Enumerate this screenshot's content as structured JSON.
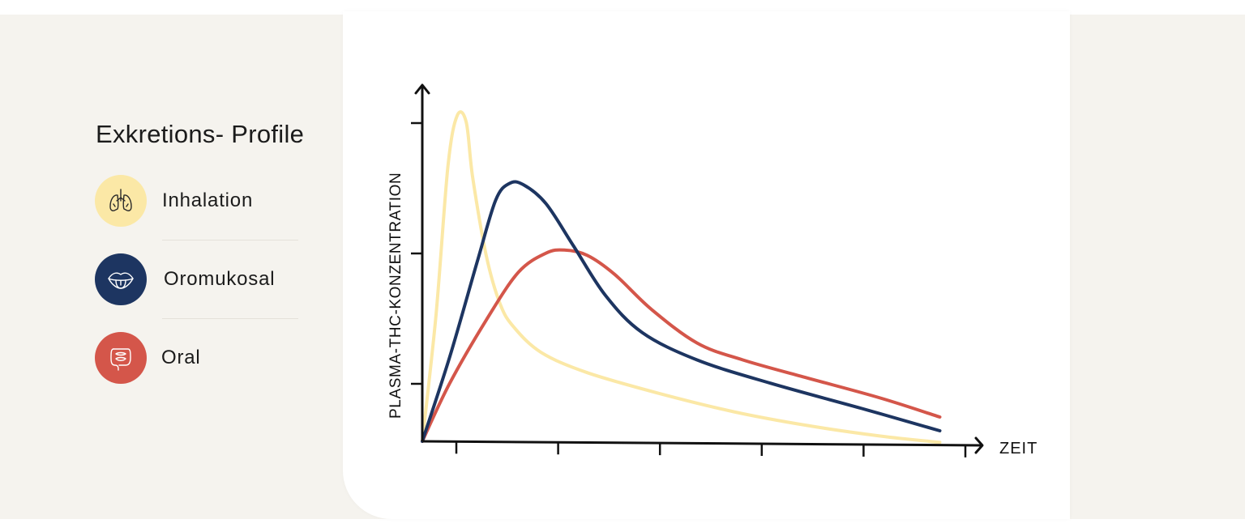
{
  "legend": {
    "title": "Exkretions- Profile",
    "items": [
      {
        "label": "Inhalation",
        "icon": "lungs-icon",
        "color": "#fbe8a6"
      },
      {
        "label": "Oromukosal",
        "icon": "mouth-tongue-icon",
        "color": "#1d3561"
      },
      {
        "label": "Oral",
        "icon": "intestines-icon",
        "color": "#d4564a"
      }
    ]
  },
  "chart_data": {
    "type": "line",
    "xlabel": "ZEIT",
    "ylabel": "PLASMA-THC-KONZENTRATION",
    "x_ticks": 6,
    "y_ticks": 3,
    "xlim": [
      0,
      6.6
    ],
    "ylim": [
      0,
      3.3
    ],
    "grid": false,
    "series": [
      {
        "name": "Inhalation",
        "color": "#fbe8a6",
        "points": [
          [
            0,
            0
          ],
          [
            0.15,
            1.2
          ],
          [
            0.28,
            2.6
          ],
          [
            0.38,
            3.08
          ],
          [
            0.48,
            3.02
          ],
          [
            0.55,
            2.5
          ],
          [
            0.7,
            1.75
          ],
          [
            0.85,
            1.3
          ],
          [
            1.0,
            1.08
          ],
          [
            1.3,
            0.84
          ],
          [
            1.8,
            0.65
          ],
          [
            2.6,
            0.45
          ],
          [
            3.4,
            0.28
          ],
          [
            4.2,
            0.15
          ],
          [
            5.0,
            0.05
          ],
          [
            5.65,
            -0.01
          ]
        ]
      },
      {
        "name": "Oromukosal",
        "color": "#1d3561",
        "points": [
          [
            0,
            0
          ],
          [
            0.3,
            0.8
          ],
          [
            0.6,
            1.7
          ],
          [
            0.8,
            2.28
          ],
          [
            0.95,
            2.44
          ],
          [
            1.1,
            2.43
          ],
          [
            1.35,
            2.25
          ],
          [
            1.65,
            1.85
          ],
          [
            2.0,
            1.38
          ],
          [
            2.4,
            1.03
          ],
          [
            3.0,
            0.77
          ],
          [
            3.8,
            0.55
          ],
          [
            4.8,
            0.31
          ],
          [
            5.65,
            0.1
          ]
        ]
      },
      {
        "name": "Oral",
        "color": "#d4564a",
        "points": [
          [
            0,
            0
          ],
          [
            0.3,
            0.55
          ],
          [
            0.7,
            1.15
          ],
          [
            1.05,
            1.6
          ],
          [
            1.35,
            1.78
          ],
          [
            1.55,
            1.81
          ],
          [
            1.8,
            1.76
          ],
          [
            2.1,
            1.58
          ],
          [
            2.5,
            1.25
          ],
          [
            3.0,
            0.93
          ],
          [
            3.5,
            0.77
          ],
          [
            4.2,
            0.6
          ],
          [
            5.0,
            0.41
          ],
          [
            5.65,
            0.23
          ]
        ]
      }
    ]
  }
}
